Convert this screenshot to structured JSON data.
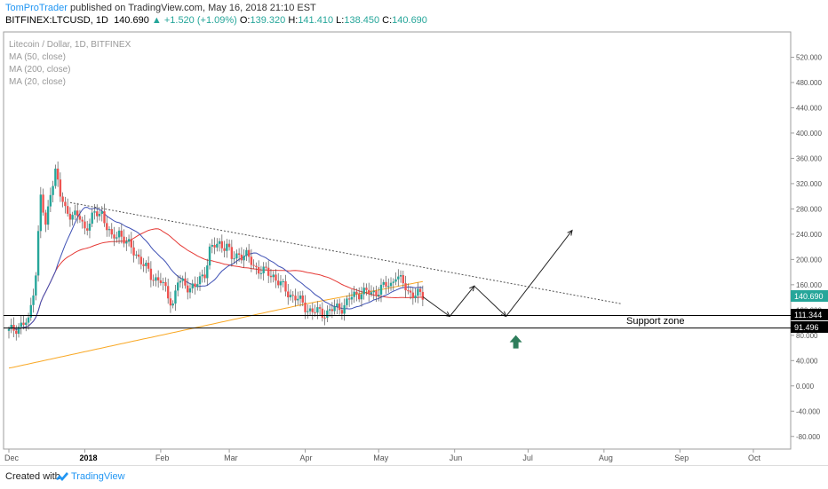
{
  "header": {
    "author": "TomProTrader",
    "published": "published on TradingView.com, May 16, 2018 21:10 EST",
    "symbol": "BITFINEX:LTCUSD, 1D",
    "price": "140.690",
    "change": "+1.520 (+1.09%)",
    "o_label": "O:",
    "o_value": "139.320",
    "h_label": "H:",
    "h_value": "141.410",
    "l_label": "L:",
    "l_value": "138.450",
    "c_label": "C:",
    "c_value": "140.690"
  },
  "legend": {
    "title": "Litecoin / Dollar, 1D, BITFINEX",
    "ma50": "MA (50, close)",
    "ma200": "MA (200, close)",
    "ma20": "MA (20, close)"
  },
  "footer": {
    "created": "Created with",
    "brand": "TradingView"
  },
  "colors": {
    "up": "#26a69a",
    "down": "#ef5350",
    "ma20": "#3f51b5",
    "ma50": "#e53935",
    "ma200": "#f9a825",
    "arrow_up": "#2e7d5b"
  },
  "chart_data": {
    "type": "candlestick",
    "x": [
      "Dec",
      "2018",
      "Feb",
      "Mar",
      "Apr",
      "May",
      "Jun",
      "Jul",
      "Aug",
      "Sep",
      "Oct"
    ],
    "y_ticks": [
      "520.000",
      "480.000",
      "440.000",
      "400.000",
      "360.000",
      "320.000",
      "280.000",
      "240.000",
      "200.000",
      "160.000",
      "120.000",
      "80.000",
      "40.000",
      "0.000",
      "-40.000",
      "-80.000"
    ],
    "ylim": [
      -100,
      560
    ],
    "last_price": "140.690",
    "support_upper": "111.344",
    "support_lower": "91.496",
    "support_label": "Support zone",
    "series": [
      {
        "name": "MA (20, close)"
      },
      {
        "name": "MA (50, close)"
      },
      {
        "name": "MA (200, close)"
      }
    ]
  }
}
